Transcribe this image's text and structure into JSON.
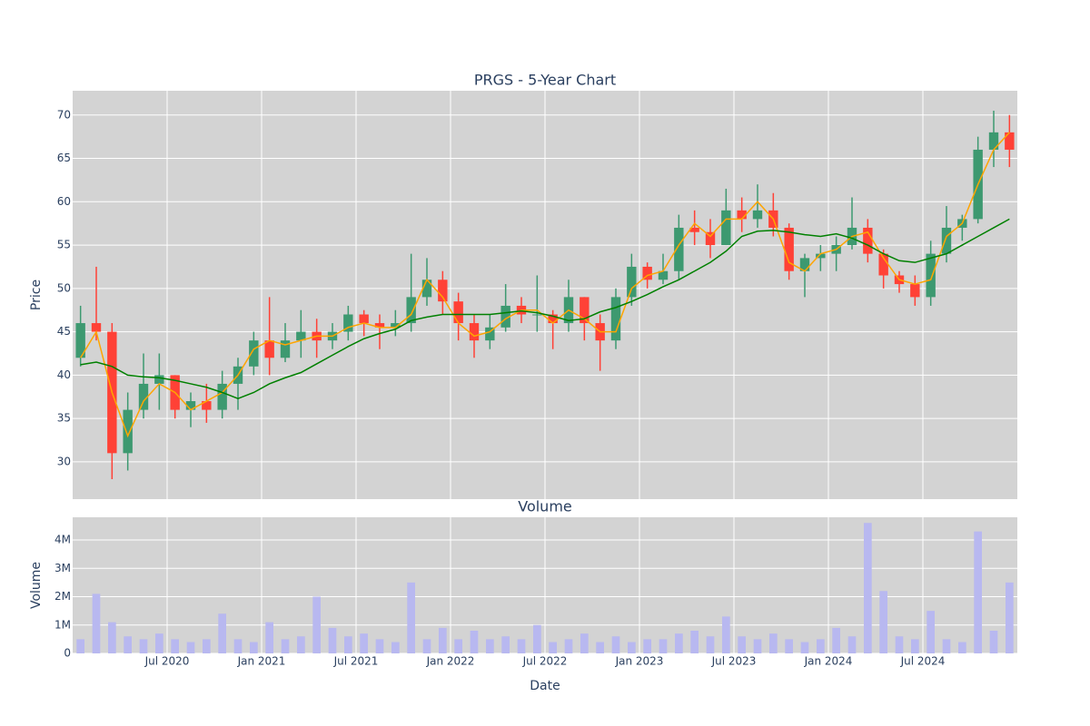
{
  "chart_data": [
    {
      "type": "candlestick",
      "title": "PRGS - 5-Year Chart",
      "ylabel": "Price",
      "x": [
        "2020-01",
        "2020-02",
        "2020-03",
        "2020-04",
        "2020-05",
        "2020-06",
        "2020-07",
        "2020-08",
        "2020-09",
        "2020-10",
        "2020-11",
        "2020-12",
        "2021-01",
        "2021-02",
        "2021-03",
        "2021-04",
        "2021-05",
        "2021-06",
        "2021-07",
        "2021-08",
        "2021-09",
        "2021-10",
        "2021-11",
        "2021-12",
        "2022-01",
        "2022-02",
        "2022-03",
        "2022-04",
        "2022-05",
        "2022-06",
        "2022-07",
        "2022-08",
        "2022-09",
        "2022-10",
        "2022-11",
        "2022-12",
        "2023-01",
        "2023-02",
        "2023-03",
        "2023-04",
        "2023-05",
        "2023-06",
        "2023-07",
        "2023-08",
        "2023-09",
        "2023-10",
        "2023-11",
        "2023-12",
        "2024-01",
        "2024-02",
        "2024-03",
        "2024-04",
        "2024-05",
        "2024-06",
        "2024-07",
        "2024-08",
        "2024-09",
        "2024-10",
        "2024-11",
        "2024-12"
      ],
      "open": [
        42,
        46,
        45,
        31,
        36,
        39,
        40,
        36,
        37,
        36,
        39,
        41,
        44,
        42,
        44,
        45,
        44,
        45,
        47,
        46,
        45.5,
        46,
        49,
        51,
        48.5,
        46,
        44,
        45.5,
        48,
        47,
        47,
        46,
        49,
        46,
        44,
        49,
        52.5,
        51,
        52,
        57,
        56.5,
        55,
        59,
        58,
        59,
        57,
        52,
        53.5,
        54,
        55,
        57,
        54,
        51.5,
        50.5,
        49,
        54,
        57,
        58,
        66,
        68
      ],
      "high": [
        48,
        52.5,
        46,
        38,
        42.5,
        42.5,
        40,
        38,
        39,
        40.5,
        42,
        45,
        49,
        46,
        47.5,
        46.5,
        46,
        48,
        47.5,
        47,
        47.5,
        54,
        53.5,
        52,
        49.5,
        47,
        47,
        50.5,
        49,
        51.5,
        47.5,
        51,
        49,
        47,
        50,
        54,
        53,
        54,
        58.5,
        59,
        58,
        61.5,
        60.5,
        62,
        61,
        57.5,
        54,
        55,
        56,
        60.5,
        58,
        54.5,
        52,
        51.5,
        55.5,
        59.5,
        58.5,
        67.5,
        70.5,
        70
      ],
      "low": [
        41,
        44,
        28,
        29,
        35,
        36,
        35,
        34,
        34.5,
        35,
        36,
        40,
        40,
        41.5,
        42,
        42,
        43,
        44,
        44.5,
        43,
        44.5,
        45,
        48,
        47,
        44,
        42,
        43,
        45,
        46,
        45,
        43,
        45,
        44,
        40.5,
        43,
        48,
        50,
        50.5,
        51,
        55,
        53.5,
        55,
        56.5,
        57,
        56,
        51,
        49,
        52,
        52,
        54.5,
        53,
        50,
        49.5,
        48,
        48,
        53,
        55.5,
        57.5,
        64,
        64
      ],
      "close": [
        46,
        45,
        31,
        36,
        39,
        40,
        36,
        37,
        36,
        39,
        41,
        44,
        42,
        44,
        45,
        44,
        45,
        47,
        46,
        45.5,
        46,
        49,
        51,
        48.5,
        46,
        44,
        45.5,
        48,
        47,
        47,
        46,
        49,
        46,
        44,
        49,
        52.5,
        51,
        52,
        57,
        56.5,
        55,
        59,
        58,
        59,
        57,
        52,
        53.5,
        54,
        55,
        57,
        54,
        51.5,
        50.5,
        49,
        54,
        57,
        58,
        66,
        68,
        66
      ],
      "increasing_color": "#3d9970",
      "decreasing_color": "#ff4136",
      "overlays": [
        {
          "color": "#ffa500",
          "values": [
            42,
            45,
            38,
            33,
            37,
            39,
            38,
            36,
            37,
            38,
            40,
            43,
            44,
            43.5,
            44,
            44.5,
            44.5,
            45.5,
            46,
            45.5,
            45.5,
            47,
            51,
            49,
            46,
            44.5,
            45,
            46.5,
            47.5,
            47.5,
            46,
            47.5,
            46.5,
            45,
            45,
            50,
            51.5,
            52,
            55,
            57.5,
            56,
            58,
            58,
            60,
            58,
            53,
            52,
            54,
            54.5,
            56,
            56.5,
            53.5,
            51,
            50.5,
            51,
            56,
            57.5,
            62,
            66,
            68
          ]
        },
        {
          "color": "#008000",
          "values": [
            41.2,
            41.5,
            41,
            40,
            39.8,
            39.7,
            39.4,
            39,
            38.6,
            38,
            37.3,
            38,
            39,
            39.7,
            40.3,
            41.3,
            42.3,
            43.3,
            44.2,
            44.8,
            45.3,
            46.3,
            46.7,
            47,
            47,
            47,
            47,
            47.2,
            47.4,
            47.2,
            46.8,
            46.3,
            46.5,
            47.3,
            47.8,
            48.5,
            49.3,
            50.2,
            51,
            52,
            53,
            54.3,
            56,
            56.6,
            56.7,
            56.5,
            56.2,
            56,
            56.3,
            55.8,
            55,
            54,
            53.2,
            53,
            53.5,
            54,
            55,
            56,
            57,
            58
          ]
        }
      ],
      "ylim": [
        25.7,
        72.8
      ],
      "yticks": [
        30,
        35,
        40,
        45,
        50,
        55,
        60,
        65,
        70
      ]
    },
    {
      "type": "bar",
      "title": "Volume",
      "ylabel": "Volume",
      "xlabel": "Date",
      "color": "#b8b8f0",
      "x": [
        "2020-01",
        "2020-02",
        "2020-03",
        "2020-04",
        "2020-05",
        "2020-06",
        "2020-07",
        "2020-08",
        "2020-09",
        "2020-10",
        "2020-11",
        "2020-12",
        "2021-01",
        "2021-02",
        "2021-03",
        "2021-04",
        "2021-05",
        "2021-06",
        "2021-07",
        "2021-08",
        "2021-09",
        "2021-10",
        "2021-11",
        "2021-12",
        "2022-01",
        "2022-02",
        "2022-03",
        "2022-04",
        "2022-05",
        "2022-06",
        "2022-07",
        "2022-08",
        "2022-09",
        "2022-10",
        "2022-11",
        "2022-12",
        "2023-01",
        "2023-02",
        "2023-03",
        "2023-04",
        "2023-05",
        "2023-06",
        "2023-07",
        "2023-08",
        "2023-09",
        "2023-10",
        "2023-11",
        "2023-12",
        "2024-01",
        "2024-02",
        "2024-03",
        "2024-04",
        "2024-05",
        "2024-06",
        "2024-07",
        "2024-08",
        "2024-09",
        "2024-10",
        "2024-11",
        "2024-12"
      ],
      "values": [
        500000,
        2100000,
        1100000,
        600000,
        500000,
        700000,
        500000,
        400000,
        500000,
        1400000,
        500000,
        400000,
        1100000,
        500000,
        600000,
        2000000,
        900000,
        600000,
        700000,
        500000,
        400000,
        2500000,
        500000,
        900000,
        500000,
        800000,
        500000,
        600000,
        500000,
        1000000,
        400000,
        500000,
        700000,
        400000,
        600000,
        400000,
        500000,
        500000,
        700000,
        800000,
        600000,
        1300000,
        600000,
        500000,
        700000,
        500000,
        400000,
        500000,
        900000,
        600000,
        4600000,
        2200000,
        600000,
        500000,
        1500000,
        500000,
        400000,
        4300000,
        800000,
        2500000
      ],
      "ylim": [
        0,
        4800000
      ],
      "yticks": [
        0,
        {
          "value": 1000000,
          "label": "1M"
        },
        {
          "value": 2000000,
          "label": "2M"
        },
        {
          "value": 3000000,
          "label": "3M"
        },
        {
          "value": 4000000,
          "label": "4M"
        }
      ],
      "xlim": [
        "2020-01",
        "2025-01"
      ],
      "xticks": [
        {
          "value": "2020-07",
          "label": "Jul 2020"
        },
        {
          "value": "2021-01",
          "label": "Jan 2021"
        },
        {
          "value": "2021-07",
          "label": "Jul 2021"
        },
        {
          "value": "2022-01",
          "label": "Jan 2022"
        },
        {
          "value": "2022-07",
          "label": "Jul 2022"
        },
        {
          "value": "2023-01",
          "label": "Jan 2023"
        },
        {
          "value": "2023-07",
          "label": "Jul 2023"
        },
        {
          "value": "2024-01",
          "label": "Jan 2024"
        },
        {
          "value": "2024-07",
          "label": "Jul 2024"
        }
      ]
    }
  ]
}
